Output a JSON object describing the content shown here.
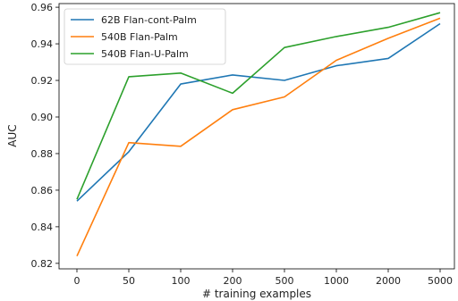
{
  "chart_data": {
    "type": "line",
    "xlabel": "# training examples",
    "ylabel": "AUC",
    "categories": [
      "0",
      "50",
      "100",
      "200",
      "500",
      "1000",
      "2000",
      "5000"
    ],
    "ylim": [
      0.817,
      0.962
    ],
    "yticks": [
      "0.82",
      "0.84",
      "0.86",
      "0.88",
      "0.90",
      "0.92",
      "0.94",
      "0.96"
    ],
    "legend_position": "top-left",
    "grid": false,
    "series": [
      {
        "name": "62B Flan-cont-Palm",
        "color": "#1f77b4",
        "values": [
          0.854,
          0.881,
          0.918,
          0.923,
          0.92,
          0.928,
          0.932,
          0.951
        ]
      },
      {
        "name": "540B Flan-Palm",
        "color": "#ff7f0e",
        "values": [
          0.824,
          0.886,
          0.884,
          0.904,
          0.911,
          0.931,
          0.943,
          0.954
        ]
      },
      {
        "name": "540B Flan-U-Palm",
        "color": "#2ca02c",
        "values": [
          0.855,
          0.922,
          0.924,
          0.913,
          0.938,
          0.944,
          0.949,
          0.957
        ]
      }
    ]
  }
}
